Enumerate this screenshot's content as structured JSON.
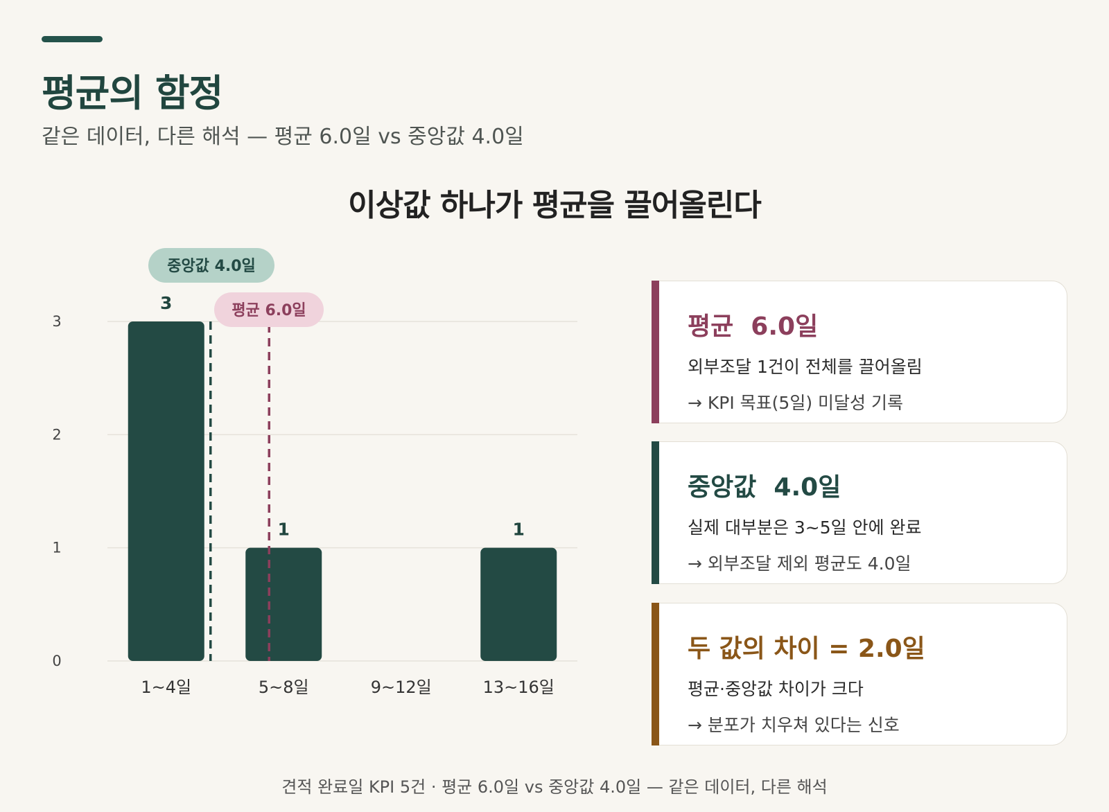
{
  "header": {
    "title": "평균의 함정",
    "subtitle": "같은 데이터, 다른 해석 — 평균 6.0일 vs 중앙값 4.0일"
  },
  "chart_data": {
    "type": "bar",
    "title": "이상값 하나가 평균을 끌어올린다",
    "categories": [
      "1~4일",
      "5~8일",
      "9~12일",
      "13~16일"
    ],
    "values": [
      3,
      1,
      0,
      1
    ],
    "value_labels": [
      "3",
      "1",
      "",
      "1"
    ],
    "ylim": [
      0,
      3
    ],
    "yticks": [
      "0",
      "1",
      "2",
      "3"
    ],
    "grid": true,
    "bar_color": "#234a44",
    "reference_lines": [
      {
        "label": "중앙값 4.0일",
        "value_days": 4.0,
        "color": "#234a44",
        "badge_bg": "#b5d2c8"
      },
      {
        "label": "평균 6.0일",
        "value_days": 6.0,
        "color": "#8c3f5c",
        "badge_bg": "#f0d3dc",
        "badge_text": "#8c3f5c"
      }
    ]
  },
  "cards": [
    {
      "title": "평균  6.0일",
      "line1": "외부조달 1건이 전체를 끌어올림",
      "line2": "→ KPI 목표(5일) 미달성 기록",
      "color": "#8c3f5c"
    },
    {
      "title": "중앙값  4.0일",
      "line1": "실제 대부분은 3~5일 안에 완료",
      "line2": "→ 외부조달 제외 평균도 4.0일",
      "color": "#234a44"
    },
    {
      "title": "두 값의 차이 = 2.0일",
      "line1": "평균·중앙값 차이가 크다",
      "line2": "→ 분포가 치우쳐 있다는 신호",
      "color": "#8a5618"
    }
  ],
  "footer": "견적 완료일 KPI 5건 · 평균 6.0일 vs 중앙값 4.0일 — 같은 데이터, 다른 해석"
}
